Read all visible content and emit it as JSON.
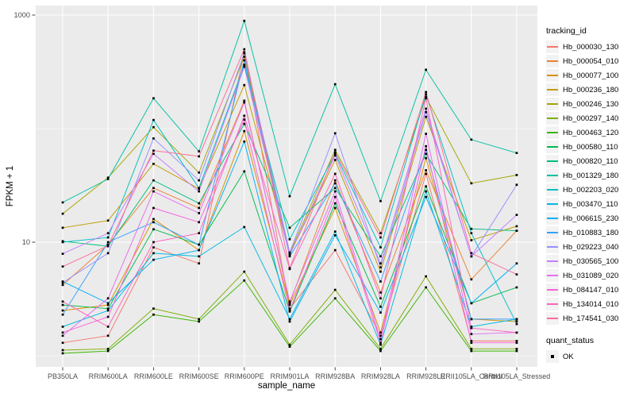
{
  "figure": {
    "panel_background": "#EBEBEB",
    "gridline_color": "#FFFFFF",
    "point_color": "#000000",
    "axis_text_color": "#4D4D4D",
    "tick_color": "#333333"
  },
  "legend": {
    "tracking_title": "tracking_id",
    "quant_title": "quant_status",
    "quant_items": [
      {
        "label": "OK"
      }
    ]
  },
  "chart_data": {
    "type": "line",
    "title": "",
    "xlabel": "sample_name",
    "ylabel": "FPKM + 1",
    "y_scale": "log10",
    "ylim": [
      0.8,
      1150
    ],
    "y_ticks": [
      1000,
      10
    ],
    "y_tick_labels": [
      "1000",
      "10"
    ],
    "y_minor_gridlines": [
      100,
      1
    ],
    "grid": "on",
    "legend_position": "right",
    "point_marker": "filled-square",
    "categories": [
      "PB350LA",
      "RRIM600LA",
      "RRIM600LE",
      "RRIM600SE",
      "RRIM600PE",
      "RRIM901LA",
      "RRIM928BA",
      "RRIM928LA",
      "RRIM928LE",
      "RRII105LA_Control",
      "RRII105LA_Stressed"
    ],
    "series": [
      {
        "name": "Hb_000030_130",
        "color": "#F8766D",
        "values": [
          1.3,
          1.5,
          9,
          6.5,
          470,
          2.6,
          8.5,
          1.5,
          40,
          1.35,
          1.35
        ]
      },
      {
        "name": "Hb_000054_010",
        "color": "#EA8331",
        "values": [
          4.2,
          9.5,
          30,
          20,
          176,
          2.9,
          35,
          3.6,
          43,
          4.7,
          12.6
        ]
      },
      {
        "name": "Hb_000077_100",
        "color": "#D89000",
        "values": [
          2.5,
          2.8,
          16,
          8.5,
          95,
          2.8,
          20,
          1.6,
          55,
          2.1,
          2.0
        ]
      },
      {
        "name": "Hb_000236_180",
        "color": "#C09B00",
        "values": [
          13.4,
          15.5,
          49,
          29.5,
          242,
          7.8,
          53,
          5.5,
          127,
          10.4,
          13.8
        ]
      },
      {
        "name": "Hb_000246_130",
        "color": "#A3A500",
        "values": [
          17.8,
          37,
          103,
          41,
          430,
          8.0,
          65,
          12,
          190,
          33,
          39
        ]
      },
      {
        "name": "Hb_000297_140",
        "color": "#7CAE00",
        "values": [
          1.12,
          1.15,
          2.6,
          2.1,
          5.5,
          1.25,
          3.8,
          1.15,
          5,
          1.15,
          1.15
        ]
      },
      {
        "name": "Hb_000463_120",
        "color": "#39B600",
        "values": [
          1.05,
          1.1,
          2.3,
          2.0,
          4.6,
          1.2,
          3.2,
          1.1,
          4,
          1.1,
          1.1
        ]
      },
      {
        "name": "Hb_000580_110",
        "color": "#00BB4E",
        "values": [
          2.8,
          2.6,
          13,
          9.5,
          42,
          2.45,
          22,
          2.7,
          31,
          2.9,
          4.0
        ]
      },
      {
        "name": "Hb_000820_110",
        "color": "#00BF7D",
        "values": [
          10.2,
          9.2,
          35,
          22,
          110,
          13.4,
          30,
          7.5,
          60,
          13.1,
          12.6
        ]
      },
      {
        "name": "Hb_001329_180",
        "color": "#00C1A3",
        "values": [
          22.4,
          36,
          185,
          63,
          890,
          25.4,
          246,
          23,
          330,
          80,
          61
        ]
      },
      {
        "name": "Hb_002203_020",
        "color": "#00BFC4",
        "values": [
          10.0,
          11,
          119,
          30,
          365,
          10.6,
          60,
          9,
          200,
          12,
          1.9
        ]
      },
      {
        "name": "Hb_003470_110",
        "color": "#00BAE0",
        "values": [
          1.8,
          2.5,
          8,
          7.5,
          13.6,
          2.1,
          12.4,
          1.25,
          28,
          1.8,
          2.1
        ]
      },
      {
        "name": "Hb_006615_230",
        "color": "#00B0F6",
        "values": [
          4.5,
          2.9,
          7,
          8.5,
          77,
          2.0,
          11.5,
          2.4,
          25,
          2.9,
          6.5
        ]
      },
      {
        "name": "Hb_010883_180",
        "color": "#35A2FF",
        "values": [
          2.3,
          10,
          15,
          9.5,
          400,
          7.5,
          33,
          4.5,
          65,
          2.1,
          2.1
        ]
      },
      {
        "name": "Hb_029223_040",
        "color": "#9590FF",
        "values": [
          4.4,
          8,
          82,
          35,
          460,
          8.1,
          91,
          6,
          140,
          7.5,
          32
        ]
      },
      {
        "name": "Hb_030565_100",
        "color": "#C77CFF",
        "values": [
          7.9,
          12,
          60,
          28,
          350,
          7.7,
          58,
          6.5,
          150,
          7.5,
          17.4
        ]
      },
      {
        "name": "Hb_031089_020",
        "color": "#E76BF3",
        "values": [
          1.5,
          3.2,
          28,
          18,
          170,
          3.0,
          28,
          1.4,
          90,
          1.55,
          1.6
        ]
      },
      {
        "name": "Hb_084147_010",
        "color": "#FA62DB",
        "values": [
          1.6,
          2.2,
          20,
          15,
          120,
          2.5,
          25,
          1.3,
          70,
          1.3,
          1.3
        ]
      },
      {
        "name": "Hb_134014_010",
        "color": "#FF62BC",
        "values": [
          3.0,
          1.8,
          10,
          12,
          130,
          5.8,
          40,
          3.2,
          185,
          1.75,
          1.6
        ]
      },
      {
        "name": "Hb_174541_030",
        "color": "#FF6A98",
        "values": [
          6.1,
          9.3,
          64,
          57,
          500,
          5.9,
          62,
          11,
          210,
          8.0,
          5.2
        ]
      }
    ]
  }
}
